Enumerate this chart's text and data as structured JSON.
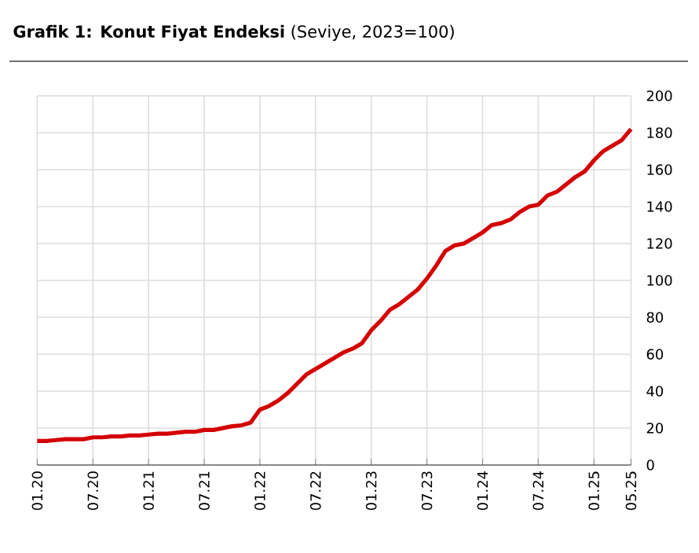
{
  "chart_data": {
    "type": "line",
    "title": "**Grafik 1: Konut Fiyat Endeksi** (Seviye, 2023=100)",
    "categories": [
      "01.20",
      null,
      null,
      null,
      null,
      null,
      "07.20",
      null,
      null,
      null,
      null,
      null,
      "01.21",
      null,
      null,
      null,
      null,
      null,
      "07.21",
      null,
      null,
      null,
      null,
      null,
      "01.22",
      null,
      null,
      null,
      null,
      null,
      "07.22",
      null,
      null,
      null,
      null,
      null,
      "01.23",
      null,
      null,
      null,
      null,
      null,
      "07.23",
      null,
      null,
      null,
      null,
      null,
      "01.24",
      null,
      null,
      null,
      null,
      null,
      "07.24",
      null,
      null,
      null,
      null,
      null,
      "01.25",
      null,
      null,
      null,
      "05.25"
    ],
    "series": [
      {
        "color": "#d40000",
        "values": [
          13,
          13,
          13.5,
          14,
          14,
          14,
          15,
          15,
          15.5,
          15.5,
          16,
          16,
          16.5,
          17,
          17,
          17.5,
          18,
          18,
          19,
          19,
          20,
          21,
          21.5,
          23,
          30,
          32,
          35,
          39,
          44,
          49,
          52,
          55,
          58,
          61,
          63,
          66,
          73,
          78,
          84,
          87,
          91,
          95,
          101,
          108,
          116,
          119,
          120,
          123,
          126,
          130,
          131,
          133,
          137,
          140,
          141,
          146,
          148,
          152,
          156,
          159,
          165,
          170,
          173,
          176,
          182
        ]
      }
    ],
    "ylim": [
      0,
      200
    ],
    "yticks": [
      0,
      20,
      40,
      60,
      80,
      100,
      120,
      140,
      160,
      180,
      200
    ],
    "grid": true,
    "marker": "none",
    "line_style": "solid"
  }
}
